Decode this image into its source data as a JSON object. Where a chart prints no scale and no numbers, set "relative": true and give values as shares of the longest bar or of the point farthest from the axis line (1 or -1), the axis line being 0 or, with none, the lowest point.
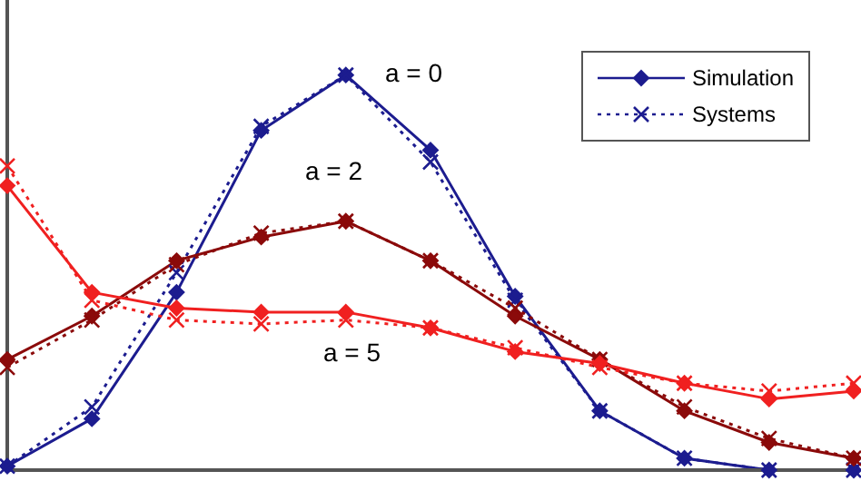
{
  "chart_data": {
    "type": "line",
    "relative": true,
    "categories": [
      null,
      null,
      null,
      null,
      null,
      null,
      null,
      null,
      null,
      null,
      null
    ],
    "series": [
      {
        "name": "Simulation",
        "color": "#1c1c8f",
        "marker": "diamond",
        "line_style": "solid",
        "values": [
          0.01,
          0.13,
          0.45,
          0.86,
          1,
          0.81,
          0.44,
          0.15,
          0.03,
          0,
          0
        ]
      },
      {
        "name": "Systems",
        "color": "#1c1c8f",
        "marker": "cross",
        "line_style": "dotted",
        "values": [
          0.01,
          0.16,
          0.5,
          0.87,
          1,
          0.78,
          0.43,
          0.15,
          0.03,
          0,
          0
        ]
      },
      {
        "color": "#8b0a0a",
        "marker": "diamond",
        "line_style": "solid",
        "values": [
          0.28,
          0.39,
          0.53,
          0.59,
          0.63,
          0.53,
          0.39,
          0.28,
          0.15,
          0.07,
          0.03
        ]
      },
      {
        "color": "#8b0a0a",
        "marker": "cross",
        "line_style": "dotted",
        "values": [
          0.26,
          0.38,
          0.52,
          0.6,
          0.63,
          0.53,
          0.41,
          0.28,
          0.16,
          0.08,
          0.03
        ]
      },
      {
        "color": "#f02020",
        "marker": "diamond",
        "line_style": "solid",
        "values": [
          0.72,
          0.45,
          0.41,
          0.4,
          0.4,
          0.36,
          0.3,
          0.27,
          0.22,
          0.18,
          0.2
        ]
      },
      {
        "color": "#f02020",
        "marker": "cross",
        "line_style": "dotted",
        "values": [
          0.77,
          0.43,
          0.38,
          0.37,
          0.38,
          0.36,
          0.31,
          0.26,
          0.22,
          0.2,
          0.22
        ]
      }
    ],
    "annotations": [
      "a = 0",
      "a = 2",
      "a = 5"
    ],
    "legend": "top right",
    "grid": false
  }
}
